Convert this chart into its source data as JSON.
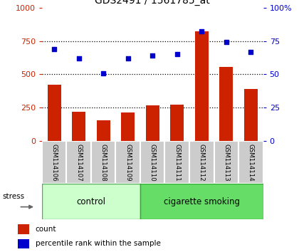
{
  "title": "GDS2491 / 1561785_at",
  "samples": [
    "GSM114106",
    "GSM114107",
    "GSM114108",
    "GSM114109",
    "GSM114110",
    "GSM114111",
    "GSM114112",
    "GSM114113",
    "GSM114114"
  ],
  "counts": [
    420,
    220,
    155,
    215,
    270,
    275,
    820,
    555,
    390
  ],
  "percentiles": [
    69,
    62,
    51,
    62,
    64,
    65,
    82,
    74,
    67
  ],
  "bar_color": "#cc2200",
  "dot_color": "#0000cc",
  "left_ylim": [
    0,
    1000
  ],
  "right_ylim": [
    0,
    100
  ],
  "left_yticks": [
    0,
    250,
    500,
    750,
    1000
  ],
  "right_yticks": [
    0,
    25,
    50,
    75,
    100
  ],
  "grid_values": [
    250,
    500,
    750
  ],
  "tick_area_color": "#cccccc",
  "control_bg": "#ccffcc",
  "smoking_bg": "#66dd66",
  "n_control": 4,
  "n_smoking": 5,
  "stress_label": "stress",
  "control_label": "control",
  "smoking_label": "cigarette smoking",
  "legend_count": "count",
  "legend_pct": "percentile rank within the sample"
}
